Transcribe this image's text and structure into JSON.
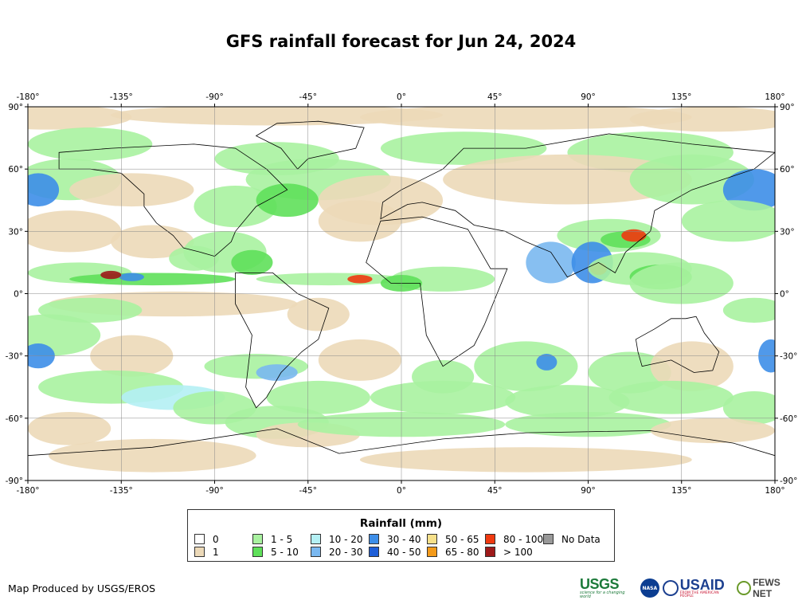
{
  "title": "GFS rainfall forecast for Jun 24, 2024",
  "axes": {
    "lon_ticks": [
      "-180°",
      "-135°",
      "-90°",
      "-45°",
      "0°",
      "45°",
      "90°",
      "135°",
      "180°"
    ],
    "lat_ticks": [
      "90°",
      "60°",
      "30°",
      "0°",
      "-30°",
      "-60°",
      "-90°"
    ],
    "lon_range": [
      -180,
      180
    ],
    "lat_range": [
      -90,
      90
    ],
    "grid": true
  },
  "colors": {
    "ocean_background": "#ffffff",
    "coastline": "#000000",
    "gridline": "#888888"
  },
  "legend": {
    "title": "Rainfall (mm)",
    "items": [
      {
        "label": "0",
        "color": "#ffffff"
      },
      {
        "label": "1",
        "color": "#ecd9b8"
      },
      {
        "label": "1 - 5",
        "color": "#a9f2a0"
      },
      {
        "label": "5 - 10",
        "color": "#5fe05a"
      },
      {
        "label": "10 - 20",
        "color": "#b4f0f4"
      },
      {
        "label": "20 - 30",
        "color": "#7ab8f0"
      },
      {
        "label": "30 - 40",
        "color": "#3d8ee8"
      },
      {
        "label": "40 - 50",
        "color": "#1f5fd8"
      },
      {
        "label": "50 - 65",
        "color": "#f6e08a"
      },
      {
        "label": "65 - 80",
        "color": "#f39a1a"
      },
      {
        "label": "80 - 100",
        "color": "#f03a10"
      },
      {
        "label": "> 100",
        "color": "#9e1a1a"
      },
      {
        "label": "No Data",
        "color": "#999999"
      }
    ]
  },
  "credit": "Map Produced by USGS/EROS",
  "logos": {
    "usgs": {
      "name": "usgs-logo",
      "text": "USGS",
      "tagline": "science for a changing world"
    },
    "nasa": {
      "name": "nasa-logo",
      "text": "NASA"
    },
    "usaid": {
      "name": "usaid-logo",
      "text": "USAID",
      "tagline": "FROM THE AMERICAN PEOPLE"
    },
    "fews": {
      "name": "fews-net-logo",
      "text": "FEWS NET"
    }
  }
}
